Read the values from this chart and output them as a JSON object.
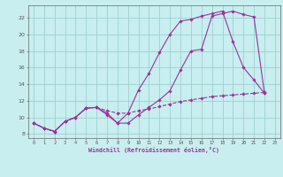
{
  "background_color": "#c8eef0",
  "grid_color": "#9ecfcf",
  "line_color": "#993399",
  "xlabel": "Windchill (Refroidissement éolien,°C)",
  "xlim": [
    -0.5,
    23.5
  ],
  "ylim": [
    7.5,
    23.5
  ],
  "yticks": [
    8,
    10,
    12,
    14,
    16,
    18,
    20,
    22
  ],
  "xticks": [
    0,
    1,
    2,
    3,
    4,
    5,
    6,
    7,
    8,
    9,
    10,
    11,
    12,
    13,
    14,
    15,
    16,
    17,
    18,
    19,
    20,
    21,
    22,
    23
  ],
  "curve1_x": [
    0,
    1,
    2,
    3,
    4,
    5,
    6,
    7,
    8,
    9,
    10,
    11,
    12,
    13,
    14,
    15,
    16,
    17,
    18,
    19,
    20,
    21,
    22
  ],
  "curve1_y": [
    9.3,
    8.7,
    8.3,
    9.5,
    10.0,
    11.1,
    11.2,
    10.5,
    9.3,
    10.5,
    13.3,
    15.3,
    17.8,
    20.0,
    21.6,
    21.8,
    22.2,
    22.5,
    22.8,
    19.1,
    16.0,
    14.5,
    12.9
  ],
  "curve2_x": [
    0,
    1,
    2,
    3,
    4,
    5,
    6,
    7,
    8,
    9,
    10,
    11,
    12,
    13,
    14,
    15,
    16,
    17,
    18,
    19,
    20,
    21,
    22
  ],
  "curve2_y": [
    9.3,
    8.7,
    8.3,
    9.5,
    10.0,
    11.1,
    11.2,
    10.3,
    9.3,
    9.3,
    10.3,
    11.2,
    12.1,
    13.2,
    15.7,
    18.0,
    18.2,
    22.2,
    22.5,
    22.8,
    22.4,
    22.1,
    12.9
  ],
  "curve3_x": [
    0,
    1,
    2,
    3,
    4,
    5,
    6,
    7,
    8,
    9,
    10,
    11,
    12,
    13,
    14,
    15,
    16,
    17,
    18,
    19,
    20,
    21,
    22
  ],
  "curve3_y": [
    9.3,
    8.7,
    8.3,
    9.5,
    10.0,
    11.1,
    11.2,
    10.8,
    10.5,
    10.5,
    10.8,
    11.0,
    11.3,
    11.6,
    11.9,
    12.1,
    12.3,
    12.5,
    12.6,
    12.7,
    12.8,
    12.9,
    13.0
  ]
}
